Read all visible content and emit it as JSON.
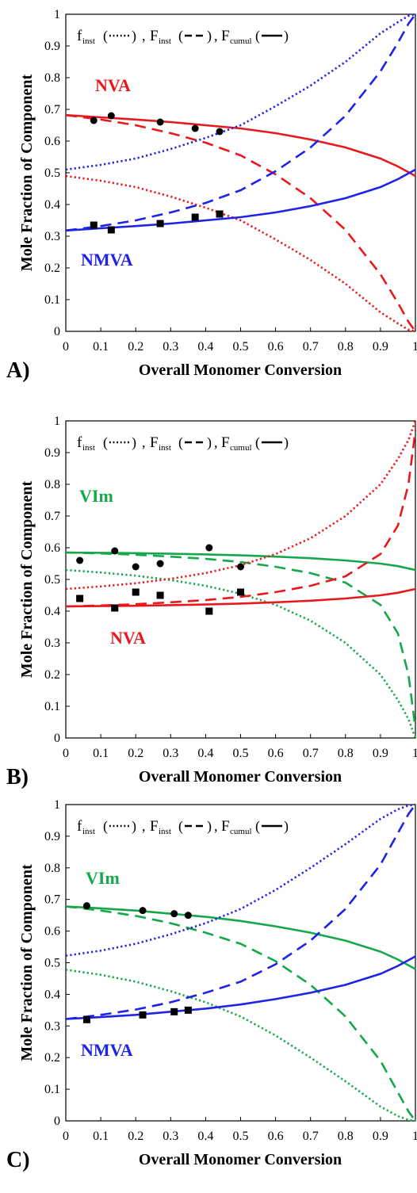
{
  "charts": [
    {
      "panel_label": "A)",
      "xlabel": "Overall Monomer Conversion",
      "ylabel": "Mole Fraction of Component",
      "annotations": [
        {
          "text": "NVA",
          "color": "#e8191c"
        },
        {
          "text": "NMVA",
          "color": "#1f23e6"
        }
      ]
    },
    {
      "panel_label": "B)",
      "xlabel": "Overall Monomer Conversion",
      "ylabel": "Mole Fraction of Component",
      "annotations": [
        {
          "text": "VIm",
          "color": "#14a84a"
        },
        {
          "text": "NVA",
          "color": "#e8191c"
        }
      ]
    },
    {
      "panel_label": "C)",
      "xlabel": "Overall Monomer Conversion",
      "ylabel": "Mole Fraction of Component",
      "annotations": [
        {
          "text": "VIm",
          "color": "#14a84a"
        },
        {
          "text": "NMVA",
          "color": "#1f23e6"
        }
      ]
    }
  ],
  "legend": {
    "f": "f",
    "f_sub": "inst",
    "F1": "F",
    "F1_sub": "inst",
    "F2": "F",
    "F2_sub": "cumul"
  },
  "chart_data": [
    {
      "type": "line",
      "xlim": [
        0,
        1
      ],
      "ylim": [
        0,
        1
      ],
      "xticks": [
        "0",
        "0.1",
        "0.2",
        "0.3",
        "0.4",
        "0.5",
        "0.6",
        "0.7",
        "0.8",
        "0.9",
        "1"
      ],
      "yticks": [
        "0",
        "0.1",
        "0.2",
        "0.3",
        "0.4",
        "0.5",
        "0.6",
        "0.7",
        "0.8",
        "0.9",
        "1"
      ],
      "grid": false,
      "legend_position": "top",
      "series": [
        {
          "color": "#e8191c",
          "style": "solid",
          "x": [
            0,
            0.1,
            0.2,
            0.3,
            0.4,
            0.5,
            0.6,
            0.7,
            0.8,
            0.9,
            0.95,
            1.0
          ],
          "y": [
            0.682,
            0.675,
            0.668,
            0.66,
            0.65,
            0.64,
            0.625,
            0.605,
            0.58,
            0.545,
            0.52,
            0.49
          ]
        },
        {
          "color": "#e8191c",
          "style": "dashed",
          "x": [
            0,
            0.1,
            0.2,
            0.3,
            0.4,
            0.5,
            0.6,
            0.7,
            0.8,
            0.9,
            0.95,
            0.98,
            1.0
          ],
          "y": [
            0.682,
            0.668,
            0.65,
            0.625,
            0.595,
            0.555,
            0.495,
            0.42,
            0.32,
            0.18,
            0.09,
            0.03,
            0.0
          ]
        },
        {
          "color": "#e8191c",
          "style": "dotted",
          "x": [
            0,
            0.1,
            0.2,
            0.3,
            0.4,
            0.5,
            0.6,
            0.7,
            0.8,
            0.9,
            0.95,
            0.98,
            1.0
          ],
          "y": [
            0.49,
            0.475,
            0.455,
            0.425,
            0.39,
            0.35,
            0.29,
            0.225,
            0.15,
            0.06,
            0.025,
            0.005,
            0.0
          ]
        },
        {
          "color": "#1f23e6",
          "style": "solid",
          "x": [
            0,
            0.1,
            0.2,
            0.3,
            0.4,
            0.5,
            0.6,
            0.7,
            0.8,
            0.9,
            0.95,
            1.0
          ],
          "y": [
            0.318,
            0.325,
            0.332,
            0.34,
            0.35,
            0.36,
            0.375,
            0.395,
            0.42,
            0.455,
            0.48,
            0.51
          ]
        },
        {
          "color": "#1f23e6",
          "style": "dashed",
          "x": [
            0,
            0.1,
            0.2,
            0.3,
            0.4,
            0.5,
            0.6,
            0.7,
            0.8,
            0.9,
            0.95,
            0.98,
            1.0
          ],
          "y": [
            0.318,
            0.332,
            0.35,
            0.375,
            0.405,
            0.445,
            0.505,
            0.58,
            0.68,
            0.82,
            0.91,
            0.97,
            1.0
          ]
        },
        {
          "color": "#1f23e6",
          "style": "dotted",
          "x": [
            0,
            0.1,
            0.2,
            0.3,
            0.4,
            0.5,
            0.6,
            0.7,
            0.8,
            0.9,
            0.95,
            0.98,
            1.0
          ],
          "y": [
            0.51,
            0.525,
            0.545,
            0.575,
            0.61,
            0.65,
            0.71,
            0.775,
            0.85,
            0.94,
            0.975,
            0.995,
            1.0
          ]
        }
      ],
      "points": [
        {
          "marker": "circle",
          "x": [
            0.08,
            0.13,
            0.27,
            0.37,
            0.44
          ],
          "y": [
            0.665,
            0.68,
            0.66,
            0.64,
            0.63
          ]
        },
        {
          "marker": "square",
          "x": [
            0.08,
            0.13,
            0.27,
            0.37,
            0.44
          ],
          "y": [
            0.335,
            0.32,
            0.34,
            0.36,
            0.37
          ]
        }
      ]
    },
    {
      "type": "line",
      "xlim": [
        0,
        1
      ],
      "ylim": [
        0,
        1
      ],
      "xticks": [
        "0",
        "0.1",
        "0.2",
        "0.3",
        "0.4",
        "0.5",
        "0.6",
        "0.7",
        "0.8",
        "0.9",
        "1"
      ],
      "yticks": [
        "0",
        "0.1",
        "0.2",
        "0.3",
        "0.4",
        "0.5",
        "0.6",
        "0.7",
        "0.8",
        "0.9",
        "1"
      ],
      "grid": false,
      "legend_position": "top",
      "series": [
        {
          "color": "#14a84a",
          "style": "solid",
          "x": [
            0,
            0.1,
            0.2,
            0.3,
            0.4,
            0.5,
            0.6,
            0.7,
            0.8,
            0.9,
            0.95,
            1.0
          ],
          "y": [
            0.585,
            0.584,
            0.583,
            0.581,
            0.579,
            0.576,
            0.572,
            0.567,
            0.56,
            0.55,
            0.542,
            0.53
          ]
        },
        {
          "color": "#14a84a",
          "style": "dashed",
          "x": [
            0,
            0.1,
            0.2,
            0.3,
            0.4,
            0.5,
            0.6,
            0.7,
            0.8,
            0.9,
            0.95,
            0.98,
            1.0
          ],
          "y": [
            0.585,
            0.582,
            0.578,
            0.572,
            0.565,
            0.555,
            0.54,
            0.52,
            0.49,
            0.42,
            0.33,
            0.2,
            0.03
          ]
        },
        {
          "color": "#14a84a",
          "style": "dotted",
          "x": [
            0,
            0.1,
            0.2,
            0.3,
            0.4,
            0.5,
            0.6,
            0.7,
            0.8,
            0.9,
            0.95,
            0.98,
            1.0
          ],
          "y": [
            0.53,
            0.522,
            0.512,
            0.498,
            0.48,
            0.455,
            0.42,
            0.37,
            0.3,
            0.2,
            0.12,
            0.06,
            0.0
          ]
        },
        {
          "color": "#e8191c",
          "style": "solid",
          "x": [
            0,
            0.1,
            0.2,
            0.3,
            0.4,
            0.5,
            0.6,
            0.7,
            0.8,
            0.9,
            0.95,
            1.0
          ],
          "y": [
            0.415,
            0.416,
            0.417,
            0.419,
            0.421,
            0.424,
            0.428,
            0.433,
            0.44,
            0.45,
            0.458,
            0.47
          ]
        },
        {
          "color": "#e8191c",
          "style": "dashed",
          "x": [
            0,
            0.1,
            0.2,
            0.3,
            0.4,
            0.5,
            0.6,
            0.7,
            0.8,
            0.9,
            0.95,
            0.98,
            1.0
          ],
          "y": [
            0.415,
            0.418,
            0.422,
            0.428,
            0.435,
            0.445,
            0.46,
            0.48,
            0.51,
            0.58,
            0.67,
            0.8,
            0.97
          ]
        },
        {
          "color": "#e8191c",
          "style": "dotted",
          "x": [
            0,
            0.1,
            0.2,
            0.3,
            0.4,
            0.5,
            0.6,
            0.7,
            0.8,
            0.9,
            0.95,
            0.98,
            1.0
          ],
          "y": [
            0.47,
            0.478,
            0.488,
            0.502,
            0.52,
            0.545,
            0.58,
            0.63,
            0.7,
            0.8,
            0.88,
            0.94,
            1.0
          ]
        }
      ],
      "points": [
        {
          "marker": "circle",
          "x": [
            0.04,
            0.14,
            0.2,
            0.27,
            0.41,
            0.5
          ],
          "y": [
            0.56,
            0.59,
            0.54,
            0.55,
            0.6,
            0.54
          ]
        },
        {
          "marker": "square",
          "x": [
            0.04,
            0.14,
            0.2,
            0.27,
            0.41,
            0.5
          ],
          "y": [
            0.44,
            0.41,
            0.46,
            0.45,
            0.4,
            0.46
          ]
        }
      ]
    },
    {
      "type": "line",
      "xlim": [
        0,
        1
      ],
      "ylim": [
        0,
        1
      ],
      "xticks": [
        "0",
        "0.1",
        "0.2",
        "0.3",
        "0.4",
        "0.5",
        "0.6",
        "0.7",
        "0.8",
        "0.9",
        "1"
      ],
      "yticks": [
        "0",
        "0.1",
        "0.2",
        "0.3",
        "0.4",
        "0.5",
        "0.6",
        "0.7",
        "0.8",
        "0.9",
        "1"
      ],
      "grid": false,
      "legend_position": "top",
      "series": [
        {
          "color": "#14a84a",
          "style": "solid",
          "x": [
            0,
            0.1,
            0.2,
            0.3,
            0.4,
            0.5,
            0.6,
            0.7,
            0.8,
            0.9,
            0.95,
            1.0
          ],
          "y": [
            0.678,
            0.672,
            0.665,
            0.655,
            0.645,
            0.632,
            0.615,
            0.595,
            0.57,
            0.535,
            0.51,
            0.48
          ]
        },
        {
          "color": "#14a84a",
          "style": "dashed",
          "x": [
            0,
            0.1,
            0.2,
            0.3,
            0.4,
            0.5,
            0.6,
            0.7,
            0.8,
            0.9,
            0.95,
            0.98,
            1.0
          ],
          "y": [
            0.678,
            0.665,
            0.648,
            0.625,
            0.595,
            0.56,
            0.505,
            0.43,
            0.33,
            0.19,
            0.09,
            0.03,
            0.0
          ]
        },
        {
          "color": "#14a84a",
          "style": "dotted",
          "x": [
            0,
            0.1,
            0.2,
            0.3,
            0.4,
            0.5,
            0.6,
            0.7,
            0.8,
            0.9,
            0.95,
            0.98,
            1.0
          ],
          "y": [
            0.478,
            0.462,
            0.44,
            0.41,
            0.375,
            0.33,
            0.27,
            0.2,
            0.125,
            0.045,
            0.015,
            0.003,
            0.0
          ]
        },
        {
          "color": "#1f23e6",
          "style": "solid",
          "x": [
            0,
            0.1,
            0.2,
            0.3,
            0.4,
            0.5,
            0.6,
            0.7,
            0.8,
            0.9,
            0.95,
            1.0
          ],
          "y": [
            0.322,
            0.328,
            0.335,
            0.345,
            0.355,
            0.368,
            0.385,
            0.405,
            0.43,
            0.465,
            0.49,
            0.52
          ]
        },
        {
          "color": "#1f23e6",
          "style": "dashed",
          "x": [
            0,
            0.1,
            0.2,
            0.3,
            0.4,
            0.5,
            0.6,
            0.7,
            0.8,
            0.9,
            0.95,
            0.98,
            1.0
          ],
          "y": [
            0.322,
            0.335,
            0.352,
            0.375,
            0.405,
            0.44,
            0.495,
            0.57,
            0.67,
            0.81,
            0.91,
            0.97,
            1.0
          ]
        },
        {
          "color": "#1f23e6",
          "style": "dotted",
          "x": [
            0,
            0.1,
            0.2,
            0.3,
            0.4,
            0.5,
            0.6,
            0.7,
            0.8,
            0.9,
            0.95,
            0.98,
            1.0
          ],
          "y": [
            0.522,
            0.538,
            0.56,
            0.59,
            0.625,
            0.67,
            0.73,
            0.8,
            0.875,
            0.955,
            0.985,
            0.997,
            1.0
          ]
        }
      ],
      "points": [
        {
          "marker": "circle",
          "x": [
            0.06,
            0.22,
            0.31,
            0.35
          ],
          "y": [
            0.68,
            0.665,
            0.655,
            0.65
          ]
        },
        {
          "marker": "square",
          "x": [
            0.06,
            0.22,
            0.31,
            0.35
          ],
          "y": [
            0.32,
            0.335,
            0.345,
            0.35
          ]
        }
      ]
    }
  ]
}
